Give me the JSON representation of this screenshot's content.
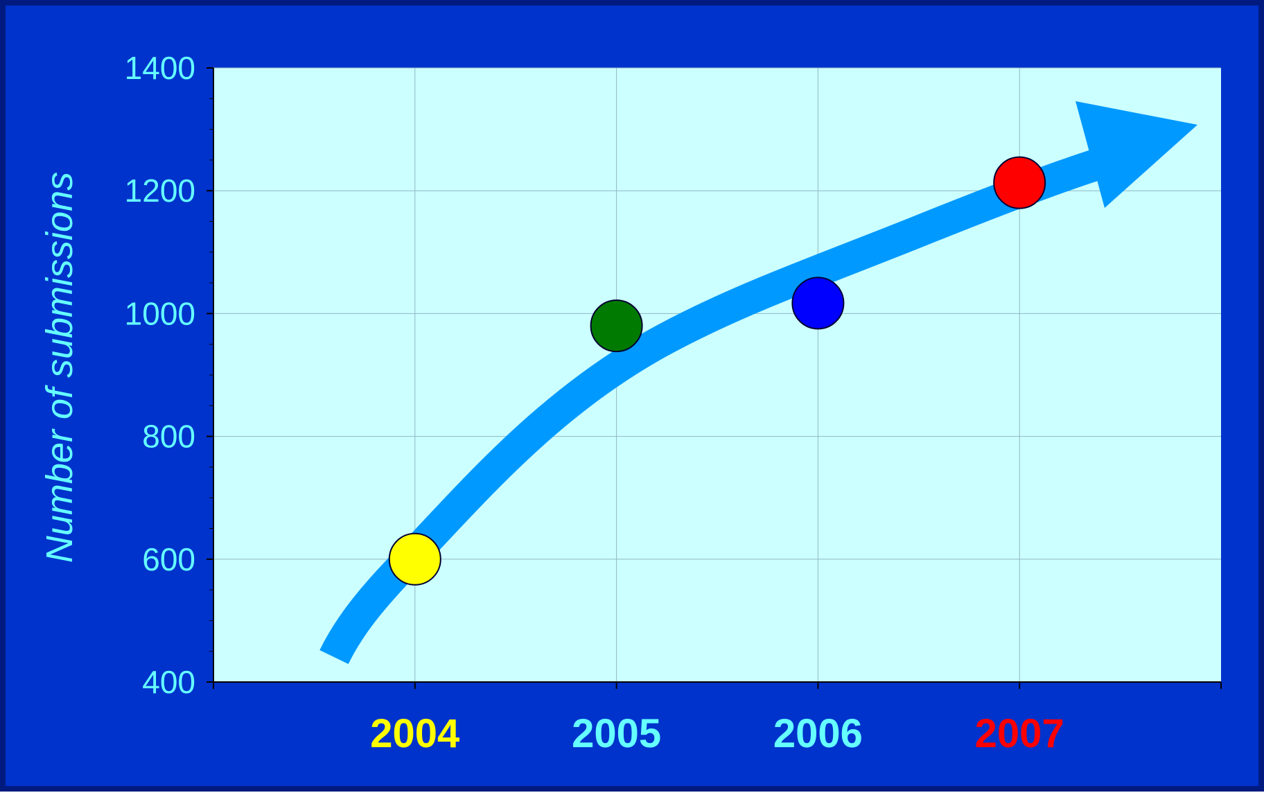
{
  "chart_data": {
    "type": "scatter",
    "title": "",
    "xlabel": "",
    "ylabel": "Number of submissions",
    "ylim": [
      400,
      1400
    ],
    "y_ticks": [
      400,
      600,
      800,
      1000,
      1200,
      1400
    ],
    "y_tick_labels": [
      "400",
      "600",
      "800",
      "1000",
      "1200",
      "1400"
    ],
    "x_tick_labels": [
      "2004",
      "2005",
      "2006",
      "2007"
    ],
    "grid": true,
    "legend": "none",
    "points": [
      {
        "x": "2004",
        "y": 600,
        "color": "#ffff00",
        "label_color": "#ffff00"
      },
      {
        "x": "2005",
        "y": 980,
        "color": "#007a00",
        "label_color": "#66ffff"
      },
      {
        "x": "2006",
        "y": 1017,
        "color": "#0000ff",
        "label_color": "#66ffff"
      },
      {
        "x": "2007",
        "y": 1213,
        "color": "#ff0000",
        "label_color": "#ff0000"
      }
    ],
    "trend_arrow": {
      "color": "#0099ff"
    },
    "colors": {
      "background": "#0033cc",
      "plot_area": "#ccffff",
      "axis_text": "#66ffff",
      "gridline": "#8fb7c4"
    }
  }
}
